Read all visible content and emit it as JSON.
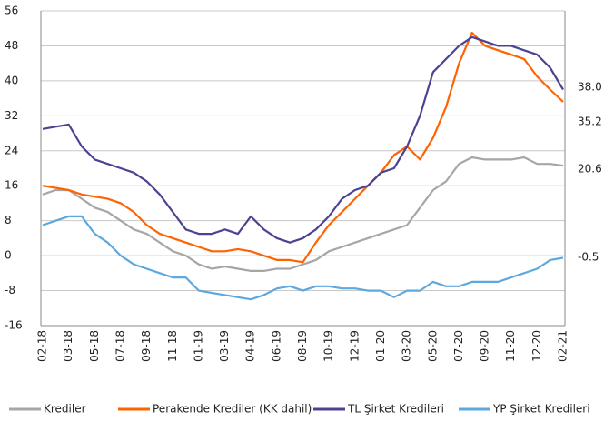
{
  "chart_data": {
    "type": "line",
    "categories": [
      "02-18",
      null,
      "03-18",
      null,
      "05-18",
      null,
      "07-18",
      null,
      "09-18",
      null,
      "11-18",
      null,
      "01-19",
      null,
      "03-19",
      null,
      "04-19",
      null,
      "06-19",
      null,
      "08-19",
      null,
      "10-19",
      null,
      "12-19",
      null,
      "01-20",
      null,
      "03-20",
      null,
      "05-20",
      null,
      "07-20",
      null,
      "09-20",
      null,
      "11-20",
      null,
      "12-20",
      null,
      "02-21"
    ],
    "ylim": [
      -16,
      56
    ],
    "yticks": [
      -16,
      -8,
      0,
      8,
      16,
      24,
      32,
      40,
      48,
      56
    ],
    "grid": true,
    "legend": "bottom",
    "series": [
      {
        "name": "Krediler",
        "color": "#a6a6a6",
        "end_label": "20.6",
        "values": [
          14,
          15,
          15,
          13,
          11,
          10,
          8,
          6,
          5,
          3,
          1,
          0,
          -2,
          -3,
          -2.5,
          -3,
          -3.5,
          -3.5,
          -3,
          -3,
          -2,
          -1,
          1,
          2,
          3,
          4,
          5,
          6,
          7,
          11,
          15,
          17,
          21,
          22.5,
          22,
          22,
          22,
          22.5,
          21,
          21,
          20.6
        ]
      },
      {
        "name": "Perakende Krediler (KK dahil)",
        "color": "#ff6200",
        "end_label": "35.2",
        "values": [
          16,
          15.5,
          15,
          14,
          13.5,
          13,
          12,
          10,
          7,
          5,
          4,
          3,
          2,
          1,
          1,
          1.5,
          1,
          0,
          -1,
          -1,
          -1.5,
          3,
          7,
          10,
          13,
          16,
          19,
          23,
          25,
          22,
          27,
          34,
          44,
          51,
          48,
          47,
          46,
          45,
          41,
          38,
          35.2
        ]
      },
      {
        "name": "TL Şirket Kredileri",
        "color": "#4b4392",
        "end_label": "38.0",
        "values": [
          29,
          29.5,
          30,
          25,
          22,
          21,
          20,
          19,
          17,
          14,
          10,
          6,
          5,
          5,
          6,
          5,
          9,
          6,
          4,
          3,
          4,
          6,
          9,
          13,
          15,
          16,
          19,
          20,
          25,
          32,
          42,
          45,
          48,
          50,
          49,
          48,
          48,
          47,
          46,
          43,
          38.0
        ]
      },
      {
        "name": "YP Şirket Kredileri",
        "color": "#5ea8e0",
        "end_label": "-0.5",
        "values": [
          7,
          8,
          9,
          9,
          5,
          3,
          0,
          -2,
          -3,
          -4,
          -5,
          -5,
          -8,
          -8.5,
          -9,
          -9.5,
          -10,
          -9,
          -7.5,
          -7,
          -8,
          -7,
          -7,
          -7.5,
          -7.5,
          -8,
          -8,
          -9.5,
          -8,
          -8,
          -6,
          -7,
          -7,
          -6,
          -6,
          -6,
          -5,
          -4,
          -3,
          -1,
          -0.5
        ]
      }
    ]
  }
}
